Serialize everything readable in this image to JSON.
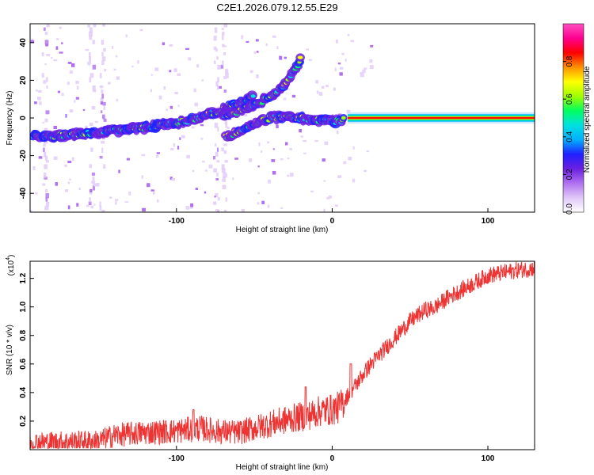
{
  "title": "C2E1.2026.079.12.55.E29",
  "chart_data": [
    {
      "type": "heatmap",
      "name": "spectrogram",
      "xlabel": "Height of straight line (km)",
      "ylabel": "Frequency (Hz)",
      "xlim": [
        -194,
        130
      ],
      "ylim": [
        -50,
        50
      ],
      "x_ticks": [
        -100,
        0,
        100
      ],
      "y_ticks": [
        -40,
        -20,
        0,
        20,
        40
      ],
      "colorbar": {
        "label": "Normalized spectral amplitude",
        "range": [
          0,
          1
        ],
        "ticks": [
          0.0,
          0.2,
          0.4,
          0.6,
          0.8
        ],
        "colors": [
          "#ffffff",
          "#e0c8f8",
          "#b070f0",
          "#6a1fe0",
          "#2020ff",
          "#00b0ff",
          "#00e0e0",
          "#00ff60",
          "#a0ff00",
          "#ffff00",
          "#ff9000",
          "#ff0000",
          "#ff0090",
          "#ff50c0"
        ]
      },
      "tracks": [
        {
          "name": "main branch",
          "points": [
            [
              -192,
              -10
            ],
            [
              -170,
              -9
            ],
            [
              -150,
              -8
            ],
            [
              -130,
              -6
            ],
            [
              -110,
              -4
            ],
            [
              -90,
              -1
            ],
            [
              -75,
              3
            ],
            [
              -60,
              8
            ],
            [
              -50,
              12
            ]
          ]
        },
        {
          "name": "upper branch",
          "points": [
            [
              -70,
              1
            ],
            [
              -55,
              5
            ],
            [
              -45,
              9
            ],
            [
              -35,
              14
            ],
            [
              -28,
              20
            ],
            [
              -22,
              28
            ],
            [
              -20,
              32
            ]
          ]
        },
        {
          "name": "lower branch",
          "points": [
            [
              -68,
              -10
            ],
            [
              -60,
              -7
            ],
            [
              -50,
              -3
            ],
            [
              -40,
              0
            ],
            [
              -30,
              1
            ],
            [
              -20,
              0
            ],
            [
              -10,
              -1
            ],
            [
              0,
              -2
            ],
            [
              8,
              -1
            ]
          ]
        },
        {
          "name": "steady line",
          "points": [
            [
              10,
              0
            ],
            [
              130,
              0
            ]
          ]
        }
      ],
      "noise_columns_km": [
        -185,
        -155,
        -148,
        -75,
        -70
      ]
    },
    {
      "type": "line",
      "name": "snr",
      "xlabel": "Height of straight line (km)",
      "ylabel": "SNR (10 * v/v)",
      "multiplier": "(x10",
      "multiplier_exp": "4",
      "multiplier_close": ")",
      "xlim": [
        -194,
        130
      ],
      "ylim": [
        0,
        1.32
      ],
      "x_ticks": [
        -100,
        0,
        100
      ],
      "y_ticks": [
        0.2,
        0.4,
        0.6,
        0.8,
        1.0,
        1.2
      ],
      "line_color": "#ee3333",
      "baseline": [
        [
          -194,
          0.05
        ],
        [
          -150,
          0.06
        ],
        [
          -140,
          0.1
        ],
        [
          -120,
          0.12
        ],
        [
          -100,
          0.13
        ],
        [
          -85,
          0.15
        ],
        [
          -75,
          0.13
        ],
        [
          -60,
          0.12
        ],
        [
          -40,
          0.18
        ],
        [
          -25,
          0.22
        ],
        [
          -15,
          0.24
        ],
        [
          -8,
          0.27
        ],
        [
          0,
          0.28
        ],
        [
          5,
          0.3
        ],
        [
          10,
          0.38
        ],
        [
          15,
          0.45
        ],
        [
          20,
          0.53
        ],
        [
          25,
          0.6
        ],
        [
          30,
          0.66
        ],
        [
          35,
          0.72
        ],
        [
          40,
          0.78
        ],
        [
          45,
          0.84
        ],
        [
          50,
          0.9
        ],
        [
          55,
          0.94
        ],
        [
          60,
          0.98
        ],
        [
          65,
          0.99
        ],
        [
          70,
          1.03
        ],
        [
          75,
          1.07
        ],
        [
          80,
          1.1
        ],
        [
          85,
          1.13
        ],
        [
          90,
          1.16
        ],
        [
          95,
          1.19
        ],
        [
          100,
          1.22
        ],
        [
          110,
          1.24
        ],
        [
          120,
          1.26
        ],
        [
          130,
          1.27
        ]
      ],
      "peaks": [
        [
          -89,
          0.28
        ],
        [
          -17,
          0.44
        ],
        [
          12,
          0.6
        ]
      ]
    }
  ]
}
